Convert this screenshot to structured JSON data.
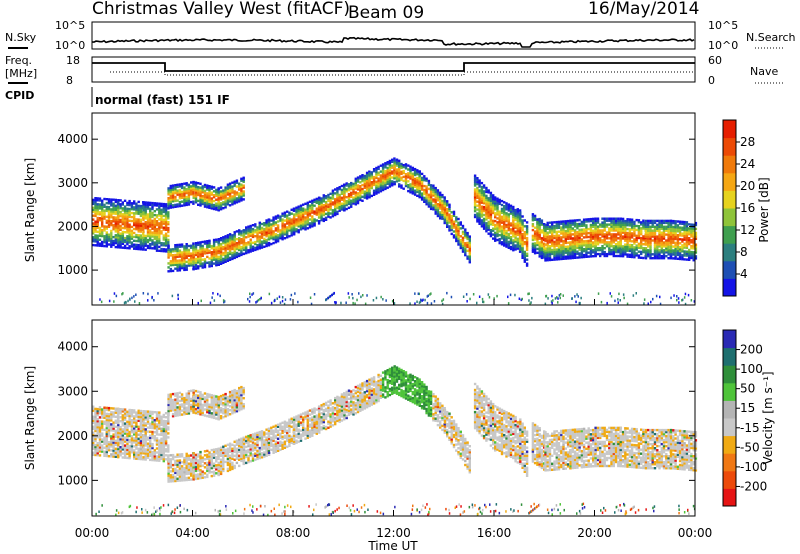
{
  "header": {
    "title": "Christmas Valley West (fitACF)",
    "beam": "Beam 09",
    "date": "16/May/2014"
  },
  "left_labels": {
    "nsky": "N.Sky",
    "nsky_ticks": [
      "10^5",
      "10^0"
    ],
    "freq_line1": "Freq.",
    "freq_line2": "[MHz]",
    "freq_ticks": [
      "18",
      "8"
    ],
    "cpid": "CPID"
  },
  "right_labels": {
    "nsearch": "N.Search",
    "nsearch_ticks": [
      "10^5",
      "10^0"
    ],
    "nave": "Nave",
    "nave_ticks": [
      "60",
      "0"
    ]
  },
  "cpid_text": "normal (fast) 151 IF",
  "colors": {
    "power_scale": [
      "#1414e6",
      "#1e4fb4",
      "#2c7f7f",
      "#3f9f4f",
      "#8fc43a",
      "#e6d21e",
      "#f5a714",
      "#f07a0a",
      "#ec4a05",
      "#e61e00"
    ],
    "velocity_scale": [
      "#2a2ab4",
      "#1e6f6f",
      "#2f8f3a",
      "#4fc43a",
      "#b4b4b4",
      "#c8c8c8",
      "#f0aa14",
      "#f07814",
      "#ec4a0a",
      "#e61414"
    ]
  },
  "chart_data": [
    {
      "type": "heatmap",
      "panel": "power",
      "ylabel": "Slant Range [km]",
      "yticks": [
        "1000",
        "2000",
        "3000",
        "4000"
      ],
      "ylim": [
        200,
        4600
      ],
      "colorbar_label": "Power [dB]",
      "colorbar_ticks": [
        "4",
        "8",
        "12",
        "16",
        "20",
        "24",
        "28"
      ],
      "series": [
        {
          "x": [
            0,
            1,
            2,
            3
          ],
          "y_center": [
            2150,
            2100,
            2050,
            2000
          ],
          "width": 550
        },
        {
          "x": [
            3,
            4,
            5,
            6,
            7,
            8,
            9,
            10,
            11,
            12,
            13,
            14,
            15
          ],
          "y_center": [
            1300,
            1350,
            1450,
            1700,
            1900,
            2150,
            2400,
            2700,
            3000,
            3300,
            3000,
            2400,
            1500
          ],
          "width": 300
        },
        {
          "x": [
            3,
            4,
            5,
            6
          ],
          "y_center": [
            2700,
            2800,
            2650,
            2900
          ],
          "width": 250
        },
        {
          "x": [
            15.2,
            16,
            17,
            17.3
          ],
          "y_center": [
            2700,
            2200,
            1900,
            1600
          ],
          "width": 500
        },
        {
          "x": [
            17.5,
            18,
            19,
            20,
            21,
            22,
            23,
            24
          ],
          "y_center": [
            1900,
            1700,
            1750,
            1800,
            1800,
            1750,
            1750,
            1700
          ],
          "width": 450
        }
      ]
    },
    {
      "type": "heatmap",
      "panel": "velocity",
      "xlabel": "Time UT",
      "xticks": [
        "00:00",
        "04:00",
        "08:00",
        "12:00",
        "16:00",
        "20:00",
        "00:00"
      ],
      "ylabel": "Slant Range [km]",
      "yticks": [
        "1000",
        "2000",
        "3000",
        "4000"
      ],
      "ylim": [
        200,
        4600
      ],
      "colorbar_label": "Velocity [m s⁻¹]",
      "colorbar_ticks": [
        "200",
        "100",
        "50",
        "15",
        "-15",
        "-50",
        "-100",
        "-200"
      ]
    }
  ]
}
